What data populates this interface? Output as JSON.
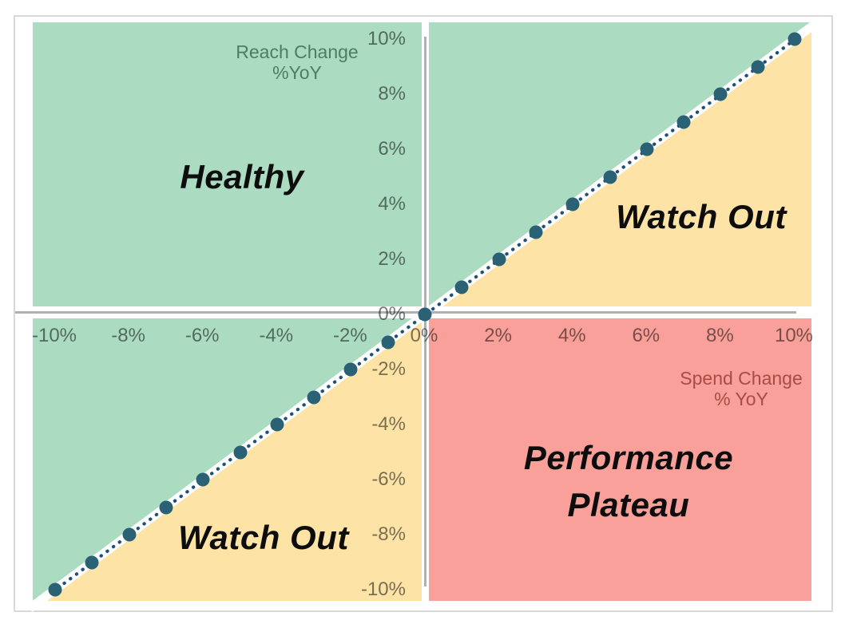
{
  "chart_data": {
    "type": "scatter",
    "x_axis": {
      "title_lines": [
        "Spend Change",
        "% YoY"
      ],
      "range": [
        -10,
        10
      ],
      "ticks": [
        {
          "v": -10,
          "label": "-10%"
        },
        {
          "v": -8,
          "label": "-8%"
        },
        {
          "v": -6,
          "label": "-6%"
        },
        {
          "v": -4,
          "label": "-4%"
        },
        {
          "v": -2,
          "label": "-2%"
        },
        {
          "v": 0,
          "label": "0%"
        },
        {
          "v": 2,
          "label": "2%"
        },
        {
          "v": 4,
          "label": "4%"
        },
        {
          "v": 6,
          "label": "6%"
        },
        {
          "v": 8,
          "label": "8%"
        },
        {
          "v": 10,
          "label": "10%"
        }
      ]
    },
    "y_axis": {
      "title_lines": [
        "Reach Change",
        "%YoY"
      ],
      "range": [
        -10,
        10
      ],
      "ticks": [
        {
          "v": 10,
          "label": "10%"
        },
        {
          "v": 8,
          "label": "8%"
        },
        {
          "v": 6,
          "label": "6%"
        },
        {
          "v": 4,
          "label": "4%"
        },
        {
          "v": 2,
          "label": "2%"
        },
        {
          "v": 0,
          "label": "0%"
        },
        {
          "v": -2,
          "label": "-2%"
        },
        {
          "v": -4,
          "label": "-4%"
        },
        {
          "v": -6,
          "label": "-6%"
        },
        {
          "v": -8,
          "label": "-8%"
        },
        {
          "v": -10,
          "label": "-10%"
        }
      ]
    },
    "series": [
      {
        "name": "diagonal-parity-line",
        "style": "dotted-line-with-markers",
        "points": [
          [
            -10,
            -10
          ],
          [
            -9,
            -9
          ],
          [
            -8,
            -8
          ],
          [
            -7,
            -7
          ],
          [
            -6,
            -6
          ],
          [
            -5,
            -5
          ],
          [
            -4,
            -4
          ],
          [
            -3,
            -3
          ],
          [
            -2,
            -2
          ],
          [
            -1,
            -1
          ],
          [
            0,
            0
          ],
          [
            1,
            1
          ],
          [
            2,
            2
          ],
          [
            3,
            3
          ],
          [
            4,
            4
          ],
          [
            5,
            5
          ],
          [
            6,
            6
          ],
          [
            7,
            7
          ],
          [
            8,
            8
          ],
          [
            9,
            9
          ],
          [
            10,
            10
          ]
        ]
      }
    ],
    "quadrant_labels": {
      "healthy": "Healthy",
      "watch_out_top": "Watch Out",
      "watch_out_bottom": "Watch Out",
      "performance_line1": "Performance",
      "performance_line2": "Plateau"
    },
    "colors": {
      "healthy_region": "#abdcc2",
      "watch_out_region": "#fde4a6",
      "performance_region": "#f8a099",
      "marker": "#2a6174",
      "dotted_line": "#1f4e79",
      "axis_line": "#b0b0b0",
      "reach_title": "#4f7d64",
      "spend_title": "#aa4b46"
    },
    "layout_hints": {
      "grid": false,
      "legend": false,
      "quadrants": true
    }
  }
}
